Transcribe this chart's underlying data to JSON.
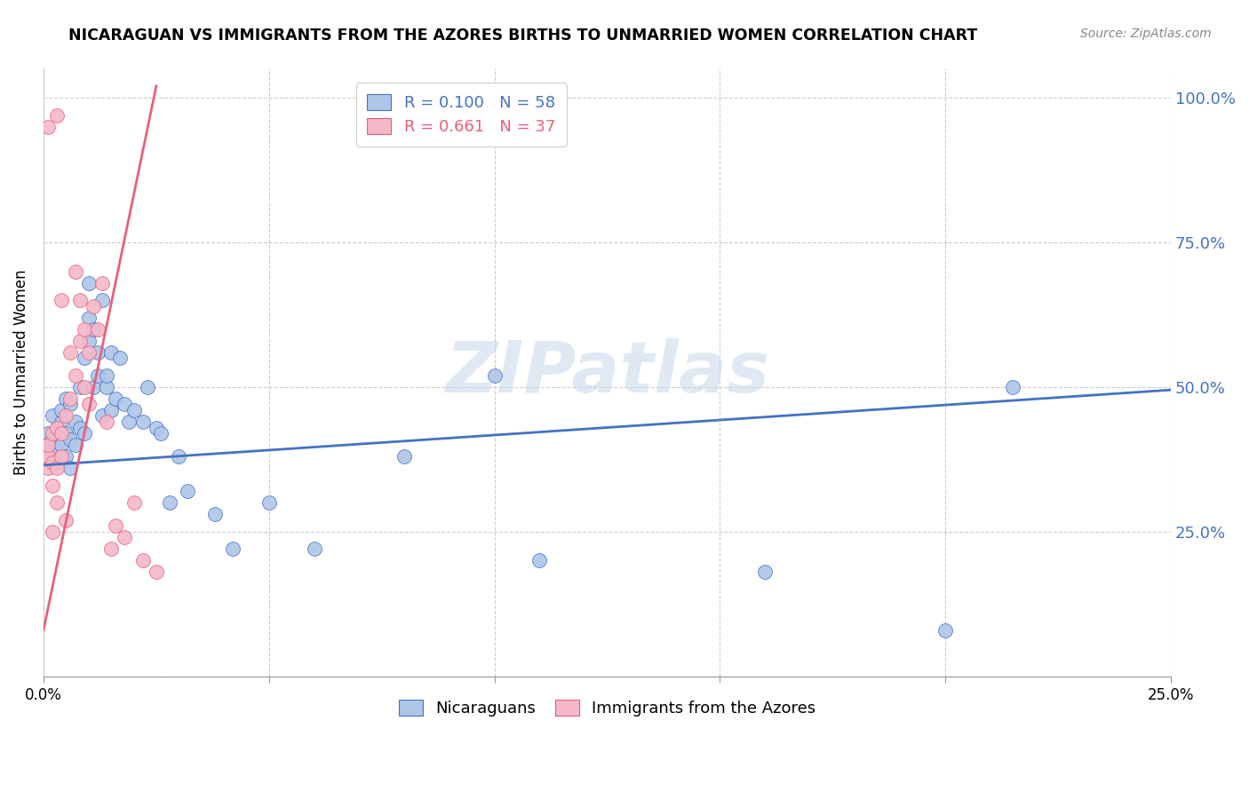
{
  "title": "NICARAGUAN VS IMMIGRANTS FROM THE AZORES BIRTHS TO UNMARRIED WOMEN CORRELATION CHART",
  "source": "Source: ZipAtlas.com",
  "ylabel_label": "Births to Unmarried Women",
  "legend_label1": "Nicaraguans",
  "legend_label2": "Immigrants from the Azores",
  "r1": 0.1,
  "n1": 58,
  "r2": 0.661,
  "n2": 37,
  "color1": "#aec6e8",
  "color2": "#f5b8c8",
  "line_color1": "#4472c4",
  "line_color2": "#e8607a",
  "xmin": 0.0,
  "xmax": 0.25,
  "ymin": 0.0,
  "ymax": 1.05,
  "watermark_text": "ZIPatlas",
  "blue_line_x0": 0.0,
  "blue_line_y0": 0.365,
  "blue_line_x1": 0.25,
  "blue_line_y1": 0.495,
  "pink_line_x0": 0.0,
  "pink_line_y0": 0.08,
  "pink_line_x1": 0.025,
  "pink_line_y1": 1.02,
  "ytick_positions": [
    0.0,
    0.25,
    0.5,
    0.75,
    1.0
  ],
  "ytick_labels_right": [
    "",
    "25.0%",
    "50.0%",
    "75.0%",
    "100.0%"
  ],
  "xtick_positions": [
    0.0,
    0.05,
    0.1,
    0.15,
    0.2,
    0.25
  ],
  "xtick_labels": [
    "0.0%",
    "",
    "",
    "",
    "",
    "25.0%"
  ],
  "blue_x": [
    0.001,
    0.001,
    0.002,
    0.002,
    0.002,
    0.003,
    0.003,
    0.003,
    0.004,
    0.004,
    0.004,
    0.005,
    0.005,
    0.005,
    0.006,
    0.006,
    0.006,
    0.007,
    0.007,
    0.008,
    0.008,
    0.009,
    0.009,
    0.01,
    0.01,
    0.01,
    0.011,
    0.011,
    0.012,
    0.012,
    0.013,
    0.013,
    0.014,
    0.014,
    0.015,
    0.015,
    0.016,
    0.017,
    0.018,
    0.019,
    0.02,
    0.022,
    0.023,
    0.025,
    0.026,
    0.028,
    0.03,
    0.032,
    0.038,
    0.042,
    0.05,
    0.06,
    0.08,
    0.1,
    0.11,
    0.16,
    0.2,
    0.215
  ],
  "blue_y": [
    0.4,
    0.42,
    0.38,
    0.41,
    0.45,
    0.39,
    0.43,
    0.37,
    0.44,
    0.4,
    0.46,
    0.38,
    0.42,
    0.48,
    0.36,
    0.41,
    0.47,
    0.4,
    0.44,
    0.43,
    0.5,
    0.42,
    0.55,
    0.58,
    0.62,
    0.68,
    0.5,
    0.6,
    0.52,
    0.56,
    0.45,
    0.65,
    0.5,
    0.52,
    0.46,
    0.56,
    0.48,
    0.55,
    0.47,
    0.44,
    0.46,
    0.44,
    0.5,
    0.43,
    0.42,
    0.3,
    0.38,
    0.32,
    0.28,
    0.22,
    0.3,
    0.22,
    0.38,
    0.52,
    0.2,
    0.18,
    0.08,
    0.5
  ],
  "pink_x": [
    0.001,
    0.001,
    0.001,
    0.001,
    0.002,
    0.002,
    0.002,
    0.002,
    0.003,
    0.003,
    0.003,
    0.003,
    0.004,
    0.004,
    0.004,
    0.005,
    0.005,
    0.006,
    0.006,
    0.007,
    0.007,
    0.008,
    0.008,
    0.009,
    0.009,
    0.01,
    0.01,
    0.011,
    0.012,
    0.013,
    0.014,
    0.015,
    0.016,
    0.018,
    0.02,
    0.022,
    0.025
  ],
  "pink_y": [
    0.36,
    0.38,
    0.4,
    0.95,
    0.33,
    0.37,
    0.25,
    0.42,
    0.36,
    0.3,
    0.43,
    0.97,
    0.38,
    0.42,
    0.65,
    0.45,
    0.27,
    0.56,
    0.48,
    0.52,
    0.7,
    0.58,
    0.65,
    0.5,
    0.6,
    0.47,
    0.56,
    0.64,
    0.6,
    0.68,
    0.44,
    0.22,
    0.26,
    0.24,
    0.3,
    0.2,
    0.18
  ]
}
